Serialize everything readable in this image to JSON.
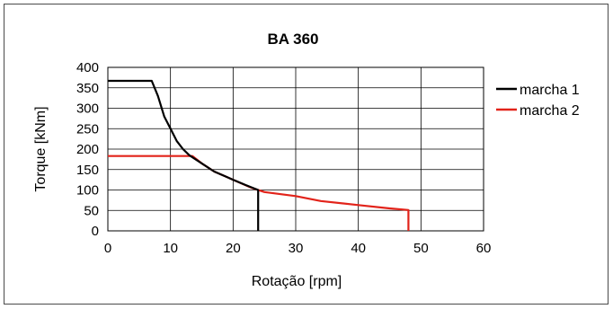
{
  "chart_data": {
    "type": "line",
    "title": "BA 360",
    "xlabel": "Rotação [rpm]",
    "ylabel": "Torque [kNm]",
    "xlim": [
      0,
      60
    ],
    "ylim": [
      0,
      400
    ],
    "xticks": [
      0,
      10,
      20,
      30,
      40,
      50,
      60
    ],
    "yticks": [
      0,
      50,
      100,
      150,
      200,
      250,
      300,
      350,
      400
    ],
    "grid": true,
    "legend_position": "right",
    "series": [
      {
        "name": "marcha 1",
        "color": "#000000",
        "x": [
          0,
          7,
          8,
          9,
          10,
          11,
          12,
          13,
          15,
          17,
          20,
          22,
          24,
          24
        ],
        "y": [
          367,
          367,
          330,
          280,
          250,
          220,
          200,
          185,
          165,
          145,
          125,
          112,
          100,
          0
        ]
      },
      {
        "name": "marcha 2",
        "color": "#e2231a",
        "x": [
          0,
          13.5,
          15,
          17,
          20,
          23,
          25,
          30,
          34,
          40,
          45,
          48,
          48
        ],
        "y": [
          183,
          183,
          165,
          145,
          125,
          105,
          95,
          85,
          73,
          63,
          55,
          51,
          0
        ]
      }
    ]
  }
}
